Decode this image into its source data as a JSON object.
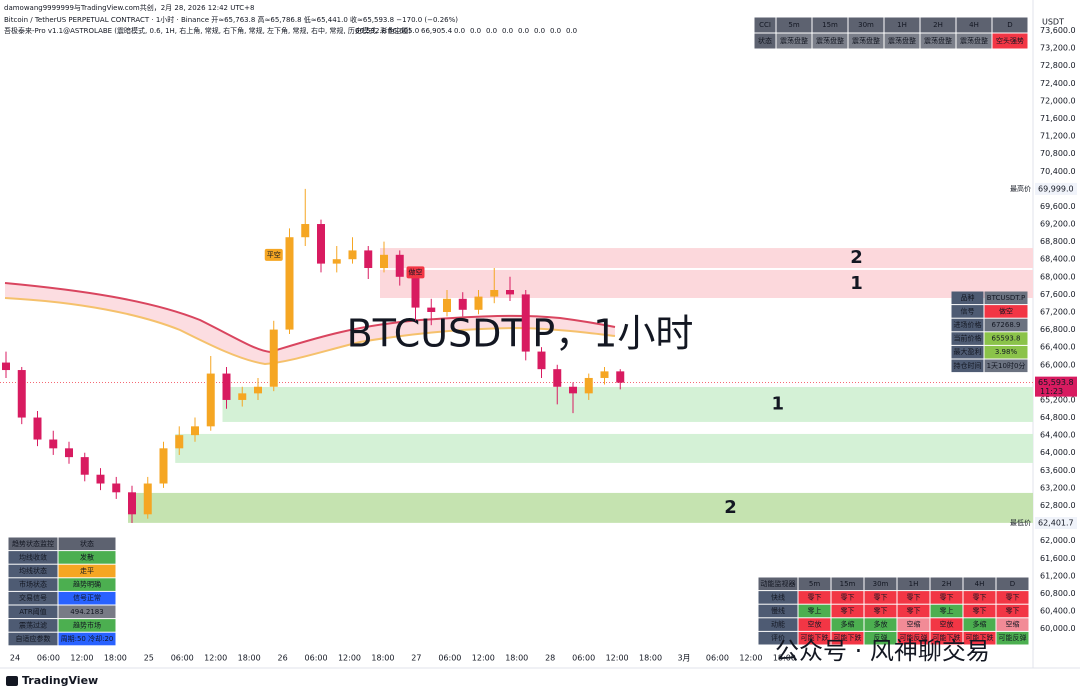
{
  "header": {
    "attribution": "damowang9999999与TradingView.com共创，2月 28, 2026 12:42 UTC+8",
    "symbol_line": "Bitcoin / TetherUS PERPETUAL CONTRACT · 1小时 · Binance  开≈65,763.8  高≈65,786.8  低≈65,441.0  收≈65,593.8  −170.0 (−0.26%)",
    "indicator_line": "吾极泰来-Pro v1.1@ASTROLABE (震暗模式, 0.6, 1H, 右上角, 常规, 右下角, 常规, 左下角, 常规, 右中, 常规, 历史模式, 彩色主题)",
    "indicator_values": [
      {
        "text": "66,592.8",
        "color": "#2962ff"
      },
      {
        "text": "66,605.0",
        "color": "#f5c518"
      },
      {
        "text": "66,905.4",
        "color": "#f23645"
      },
      {
        "text": "0.0",
        "color": "#f5a623"
      },
      {
        "text": "0.0",
        "color": "#f5a623"
      },
      {
        "text": "0.0",
        "color": "#f5a623"
      },
      {
        "text": "0.0",
        "color": "#f23645"
      },
      {
        "text": "0.0",
        "color": "#f23645"
      },
      {
        "text": "0.0",
        "color": "#4caf50"
      },
      {
        "text": "0.0",
        "color": "#4caf50"
      },
      {
        "text": "0.0",
        "color": "#f23645"
      }
    ]
  },
  "price_axis": {
    "unit": "USDT",
    "ylim": [
      59560,
      73930
    ],
    "yticks": [
      {
        "value": 73600,
        "label": "73,600.0"
      },
      {
        "value": 73200,
        "label": "73,200.0"
      },
      {
        "value": 72800,
        "label": "72,800.0"
      },
      {
        "value": 72400,
        "label": "72,400.0"
      },
      {
        "value": 72000,
        "label": "72,000.0"
      },
      {
        "value": 71600,
        "label": "71,600.0"
      },
      {
        "value": 71200,
        "label": "71,200.0"
      },
      {
        "value": 70800,
        "label": "70,800.0"
      },
      {
        "value": 70400,
        "label": "70,400.0"
      },
      {
        "value": 69600,
        "label": "69,600.0"
      },
      {
        "value": 69200,
        "label": "69,200.0"
      },
      {
        "value": 68800,
        "label": "68,800.0"
      },
      {
        "value": 68400,
        "label": "68,400.0"
      },
      {
        "value": 68000,
        "label": "68,000.0"
      },
      {
        "value": 67600,
        "label": "67,600.0"
      },
      {
        "value": 67200,
        "label": "67,200.0"
      },
      {
        "value": 66800,
        "label": "66,800.0"
      },
      {
        "value": 66400,
        "label": "66,400.0"
      },
      {
        "value": 66000,
        "label": "66,000.0"
      },
      {
        "value": 65200,
        "label": "65,200.0"
      },
      {
        "value": 64800,
        "label": "64,800.0"
      },
      {
        "value": 64400,
        "label": "64,400.0"
      },
      {
        "value": 64000,
        "label": "64,000.0"
      },
      {
        "value": 63600,
        "label": "63,600.0"
      },
      {
        "value": 63200,
        "label": "63,200.0"
      },
      {
        "value": 62800,
        "label": "62,800.0"
      },
      {
        "value": 62000,
        "label": "62,000.0"
      },
      {
        "value": 61600,
        "label": "61,600.0"
      },
      {
        "value": 61200,
        "label": "61,200.0"
      },
      {
        "value": 60800,
        "label": "60,800.0"
      },
      {
        "value": 60400,
        "label": "60,400.0"
      },
      {
        "value": 60000,
        "label": "60,000.0"
      }
    ],
    "high_label": "最高价",
    "high": {
      "value": 69999,
      "label": "69,999.0"
    },
    "current": {
      "value": 65593.8,
      "label": "65,593.8"
    },
    "countdown": "11:23",
    "low_label": "最低价",
    "low": {
      "value": 62401.7,
      "label": "62,401.7"
    }
  },
  "time_axis": [
    "24",
    "06:00",
    "12:00",
    "18:00",
    "25",
    "06:00",
    "12:00",
    "18:00",
    "26",
    "06:00",
    "12:00",
    "18:00",
    "27",
    "06:00",
    "12:00",
    "18:00",
    "28",
    "06:00",
    "12:00",
    "18:00",
    "3月",
    "06:00",
    "12:00",
    "18:00"
  ],
  "candles": {
    "up_color": "#f5a623",
    "down_color": "#d81b60",
    "ohlc": [
      [
        66050,
        66300,
        65700,
        65880
      ],
      [
        65880,
        65950,
        64650,
        64800
      ],
      [
        64800,
        64950,
        64150,
        64300
      ],
      [
        64300,
        64500,
        63950,
        64100
      ],
      [
        64100,
        64250,
        63750,
        63900
      ],
      [
        63900,
        64000,
        63350,
        63500
      ],
      [
        63500,
        63650,
        63150,
        63300
      ],
      [
        63300,
        63450,
        62950,
        63100
      ],
      [
        63100,
        63250,
        62401.7,
        62600
      ],
      [
        62600,
        63450,
        62500,
        63300
      ],
      [
        63300,
        64250,
        63200,
        64100
      ],
      [
        64100,
        64600,
        63950,
        64400
      ],
      [
        64400,
        64800,
        64250,
        64600
      ],
      [
        64600,
        66200,
        64500,
        65800
      ],
      [
        65800,
        65950,
        65000,
        65200
      ],
      [
        65200,
        65500,
        65050,
        65350
      ],
      [
        65350,
        65700,
        65200,
        65500
      ],
      [
        65500,
        67000,
        65400,
        66800
      ],
      [
        66800,
        69100,
        66700,
        68900
      ],
      [
        68900,
        69999,
        68700,
        69200
      ],
      [
        69200,
        69300,
        68100,
        68300
      ],
      [
        68300,
        68700,
        68100,
        68400
      ],
      [
        68400,
        68900,
        68300,
        68600
      ],
      [
        68600,
        68700,
        67950,
        68200
      ],
      [
        68200,
        68800,
        68100,
        68500
      ],
      [
        68500,
        68600,
        67800,
        68000
      ],
      [
        68000,
        68100,
        67000,
        67300
      ],
      [
        67300,
        67500,
        66900,
        67200
      ],
      [
        67200,
        67700,
        67100,
        67500
      ],
      [
        67500,
        67650,
        67100,
        67250
      ],
      [
        67250,
        67700,
        67150,
        67550
      ],
      [
        67550,
        68200,
        67400,
        67700
      ],
      [
        67700,
        68000,
        67450,
        67600
      ],
      [
        67600,
        67700,
        66100,
        66300
      ],
      [
        66300,
        66400,
        65700,
        65900
      ],
      [
        65900,
        66000,
        65100,
        65500
      ],
      [
        65500,
        65600,
        64900,
        65350
      ],
      [
        65350,
        65800,
        65200,
        65700
      ],
      [
        65700,
        65950,
        65550,
        65850
      ],
      [
        65850,
        65900,
        65441,
        65593.8
      ]
    ]
  },
  "zones": [
    {
      "label": "2",
      "top": 68654,
      "bottom": 68200,
      "from_candle": 24,
      "color": "#fcd8dc",
      "text_color": "#26a69a"
    },
    {
      "label": "1",
      "top": 68155,
      "bottom": 67518,
      "from_candle": 24,
      "color": "#fcd8dc",
      "text_color": "#26a69a"
    },
    {
      "label": "1",
      "top": 65495,
      "bottom": 64700,
      "from_candle": 14,
      "color": "#d4f1d6",
      "text_color": "#26a69a"
    },
    {
      "top": 64427,
      "bottom": 63768,
      "from_candle": 11,
      "color": "#d4f1d6"
    },
    {
      "label": "2",
      "top": 63086,
      "bottom": 62405,
      "from_candle": 8,
      "color": "#c5e3b0",
      "text_color": "#26a69a"
    }
  ],
  "signals": [
    {
      "text": "平空",
      "candle": 17,
      "price": 68500,
      "color": "#f5a623"
    },
    {
      "text": "做空",
      "candle": 26,
      "price": 68100,
      "color": "#f23645"
    }
  ],
  "watermark": "BTCUSDT.P，1小时",
  "cci_table": {
    "rows": [
      [
        "CCI",
        "5m",
        "15m",
        "30m",
        "1H",
        "2H",
        "4H",
        "D"
      ],
      [
        "状态",
        "震荡盘整",
        "震荡盘整",
        "震荡盘整",
        "震荡盘整",
        "震荡盘整",
        "震荡盘整",
        "空头强势"
      ]
    ],
    "colors": [
      [
        "#5d6270",
        "#5d6270",
        "#5d6270",
        "#5d6270",
        "#5d6270",
        "#5d6270",
        "#5d6270",
        "#5d6270"
      ],
      [
        "#5d6270",
        "#7b7f8a",
        "#7b7f8a",
        "#7b7f8a",
        "#7b7f8a",
        "#7b7f8a",
        "#7b7f8a",
        "#f23645"
      ]
    ]
  },
  "position_table": {
    "rows": [
      [
        "品种",
        "BTCUSDT.P"
      ],
      [
        "信号",
        "做空"
      ],
      [
        "进场价格",
        "67268.9"
      ],
      [
        "当前价格",
        "65593.8"
      ],
      [
        "最大盈利",
        "3.98%"
      ],
      [
        "持仓时间",
        "1天10时0分"
      ]
    ],
    "colors": [
      [
        "#4e5b73",
        "#6b7280"
      ],
      [
        "#4e5b73",
        "#f23645"
      ],
      [
        "#4e5b73",
        "#6b7280"
      ],
      [
        "#4e5b73",
        "#8bc34a"
      ],
      [
        "#4e5b73",
        "#8bc34a"
      ],
      [
        "#4e5b73",
        "#6b7280"
      ]
    ]
  },
  "trend_table": {
    "rows": [
      [
        "趋势状态监控",
        "状态"
      ],
      [
        "均线收敛",
        "发散"
      ],
      [
        "均线状态",
        "走平"
      ],
      [
        "市场状态",
        "趋势明确"
      ],
      [
        "交易信号",
        "信号正常"
      ],
      [
        "ATR阈值",
        "494.2183"
      ],
      [
        "震荡过滤",
        "趋势市场"
      ],
      [
        "自适应参数",
        "周期:50 冷却:20"
      ]
    ],
    "colors": [
      [
        "#5d6270",
        "#5d6270"
      ],
      [
        "#4e5b73",
        "#4caf50"
      ],
      [
        "#4e5b73",
        "#f5a623"
      ],
      [
        "#4e5b73",
        "#4caf50"
      ],
      [
        "#4e5b73",
        "#2962ff"
      ],
      [
        "#4e5b73",
        "#787b86"
      ],
      [
        "#4e5b73",
        "#4caf50"
      ],
      [
        "#4e5b73",
        "#2962ff"
      ]
    ]
  },
  "momentum_table": {
    "rows": [
      [
        "动能监视器",
        "5m",
        "15m",
        "30m",
        "1H",
        "2H",
        "4H",
        "D"
      ],
      [
        "快线",
        "零下",
        "零下",
        "零下",
        "零下",
        "零下",
        "零下",
        "零下"
      ],
      [
        "慢线",
        "零上",
        "零下",
        "零下",
        "零下",
        "零上",
        "零下",
        "零下"
      ],
      [
        "动能",
        "空放",
        "多缩",
        "多放",
        "空缩",
        "空放",
        "多缩",
        "空缩"
      ],
      [
        "评价",
        "可能下跌",
        "可能下跌",
        "反弹",
        "可能反弹",
        "可能下跌",
        "可能下跌",
        "可能反弹"
      ]
    ],
    "colors": [
      [
        "#5d6270",
        "#5d6270",
        "#5d6270",
        "#5d6270",
        "#5d6270",
        "#5d6270",
        "#5d6270",
        "#5d6270"
      ],
      [
        "#4e5b73",
        "#f23645",
        "#f23645",
        "#f23645",
        "#f23645",
        "#f23645",
        "#f23645",
        "#f23645"
      ],
      [
        "#4e5b73",
        "#4caf50",
        "#f23645",
        "#f23645",
        "#f23645",
        "#4caf50",
        "#f23645",
        "#f23645"
      ],
      [
        "#4e5b73",
        "#f23645",
        "#4caf50",
        "#4caf50",
        "#f28b96",
        "#f23645",
        "#4caf50",
        "#f28b96"
      ],
      [
        "#4e5b73",
        "#f23645",
        "#f23645",
        "#4caf50",
        "#f23645",
        "#f23645",
        "#f23645",
        "#4caf50"
      ]
    ]
  },
  "wechat_watermark": "公众号 · 风神聊交易",
  "logo": "TradingView"
}
